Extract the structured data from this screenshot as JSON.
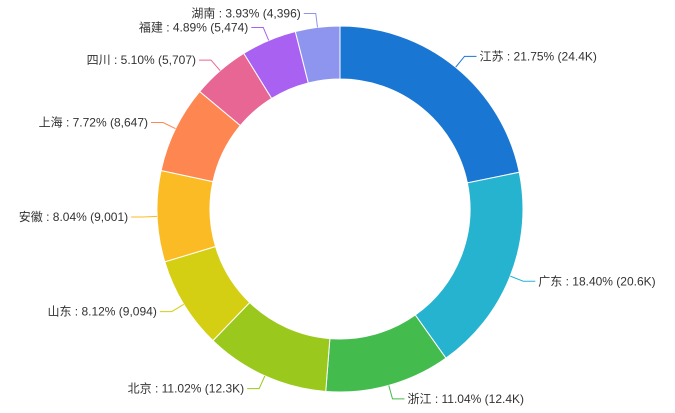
{
  "chart_data": {
    "type": "pie",
    "donut": true,
    "title": "",
    "legend": "none",
    "label_format": "{name} : {percent} ({value})",
    "slices": [
      {
        "name": "江苏",
        "percent": "21.75%",
        "value_label": "24.4K",
        "value": 24400,
        "color": "#1976d2",
        "label_side": "right"
      },
      {
        "name": "广东",
        "percent": "18.40%",
        "value_label": "20.6K",
        "value": 20600,
        "color": "#26b3d0",
        "label_side": "right"
      },
      {
        "name": "浙江",
        "percent": "11.04%",
        "value_label": "12.4K",
        "value": 12400,
        "color": "#43bb4d",
        "label_side": "right"
      },
      {
        "name": "北京",
        "percent": "11.02%",
        "value_label": "12.3K",
        "value": 12300,
        "color": "#9bc81d",
        "label_side": "left"
      },
      {
        "name": "山东",
        "percent": "8.12%",
        "value_label": "9,094",
        "value": 9094,
        "color": "#d4cf12",
        "label_side": "left"
      },
      {
        "name": "安徽",
        "percent": "8.04%",
        "value_label": "9,001",
        "value": 9001,
        "color": "#fbbb24",
        "label_side": "left"
      },
      {
        "name": "上海",
        "percent": "7.72%",
        "value_label": "8,647",
        "value": 8647,
        "color": "#fe8651",
        "label_side": "left"
      },
      {
        "name": "四川",
        "percent": "5.10%",
        "value_label": "5,707",
        "value": 5707,
        "color": "#e86694",
        "label_side": "left"
      },
      {
        "name": "福建",
        "percent": "4.89%",
        "value_label": "5,474",
        "value": 5474,
        "color": "#a961f2",
        "label_side": "left"
      },
      {
        "name": "湖南",
        "percent": "3.93%",
        "value_label": "4,396",
        "value": 4396,
        "color": "#8e95ee",
        "label_side": "left"
      }
    ]
  }
}
